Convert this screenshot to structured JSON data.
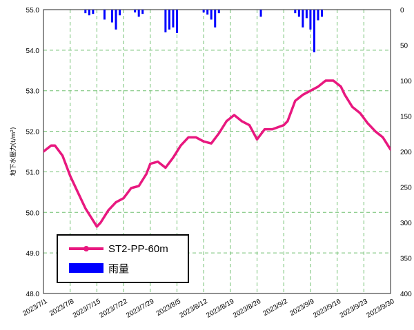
{
  "chart_data": {
    "type": "line",
    "ylabel_left": "地下水壓力(t/m²)",
    "x_ticks": [
      "2023/7/1",
      "2023/7/8",
      "2023/7/15",
      "2023/7/22",
      "2023/7/29",
      "2023/8/5",
      "2023/8/12",
      "2023/8/19",
      "2023/8/26",
      "2023/9/2",
      "2023/9/9",
      "2023/9/16",
      "2023/9/23",
      "2023/9/30"
    ],
    "xlim": [
      "2023/7/1",
      "2023/9/30"
    ],
    "y_left": {
      "ticks": [
        "55.0",
        "54.0",
        "53.0",
        "52.0",
        "51.0",
        "50.0",
        "49.0",
        "48.0"
      ],
      "ylim": [
        48,
        55
      ]
    },
    "y_right": {
      "ticks": [
        "0",
        "50",
        "100",
        "150",
        "200",
        "250",
        "300",
        "350",
        "400"
      ],
      "ylim": [
        0,
        400
      ],
      "inverted": true
    },
    "grid": true,
    "legend_position": "bottom-left",
    "series": [
      {
        "name": "ST2-PP-60m",
        "kind": "line",
        "axis": "left",
        "color": "#e8187f",
        "points": [
          [
            "2023/7/1",
            51.5
          ],
          [
            "2023/7/3",
            51.65
          ],
          [
            "2023/7/4",
            51.65
          ],
          [
            "2023/7/6",
            51.4
          ],
          [
            "2023/7/8",
            50.9
          ],
          [
            "2023/7/10",
            50.5
          ],
          [
            "2023/7/12",
            50.1
          ],
          [
            "2023/7/14",
            49.8
          ],
          [
            "2023/7/15",
            49.65
          ],
          [
            "2023/7/16",
            49.75
          ],
          [
            "2023/7/18",
            50.05
          ],
          [
            "2023/7/20",
            50.25
          ],
          [
            "2023/7/22",
            50.35
          ],
          [
            "2023/7/24",
            50.6
          ],
          [
            "2023/7/26",
            50.65
          ],
          [
            "2023/7/28",
            50.95
          ],
          [
            "2023/7/29",
            51.2
          ],
          [
            "2023/7/31",
            51.25
          ],
          [
            "2023/8/2",
            51.1
          ],
          [
            "2023/8/4",
            51.35
          ],
          [
            "2023/8/6",
            51.65
          ],
          [
            "2023/8/8",
            51.85
          ],
          [
            "2023/8/10",
            51.85
          ],
          [
            "2023/8/12",
            51.75
          ],
          [
            "2023/8/14",
            51.7
          ],
          [
            "2023/8/16",
            51.95
          ],
          [
            "2023/8/18",
            52.25
          ],
          [
            "2023/8/20",
            52.4
          ],
          [
            "2023/8/22",
            52.25
          ],
          [
            "2023/8/24",
            52.15
          ],
          [
            "2023/8/26",
            51.8
          ],
          [
            "2023/8/28",
            52.05
          ],
          [
            "2023/8/30",
            52.05
          ],
          [
            "2023/9/2",
            52.15
          ],
          [
            "2023/9/3",
            52.25
          ],
          [
            "2023/9/5",
            52.75
          ],
          [
            "2023/9/7",
            52.9
          ],
          [
            "2023/9/9",
            53.0
          ],
          [
            "2023/9/11",
            53.1
          ],
          [
            "2023/9/13",
            53.25
          ],
          [
            "2023/9/15",
            53.25
          ],
          [
            "2023/9/17",
            53.1
          ],
          [
            "2023/9/18",
            52.9
          ],
          [
            "2023/9/20",
            52.6
          ],
          [
            "2023/9/22",
            52.45
          ],
          [
            "2023/9/24",
            52.2
          ],
          [
            "2023/9/26",
            52.0
          ],
          [
            "2023/9/28",
            51.85
          ],
          [
            "2023/9/30",
            51.55
          ]
        ]
      },
      {
        "name": "雨量",
        "kind": "bar",
        "axis": "right",
        "color": "#0000ff",
        "points": [
          [
            "2023/7/12",
            5
          ],
          [
            "2023/7/13",
            8
          ],
          [
            "2023/7/14",
            6
          ],
          [
            "2023/7/17",
            14
          ],
          [
            "2023/7/19",
            18
          ],
          [
            "2023/7/20",
            28
          ],
          [
            "2023/7/21",
            8
          ],
          [
            "2023/7/25",
            4
          ],
          [
            "2023/7/26",
            10
          ],
          [
            "2023/7/27",
            6
          ],
          [
            "2023/8/2",
            32
          ],
          [
            "2023/8/3",
            28
          ],
          [
            "2023/8/4",
            25
          ],
          [
            "2023/8/5",
            33
          ],
          [
            "2023/8/12",
            4
          ],
          [
            "2023/8/13",
            7
          ],
          [
            "2023/8/14",
            14
          ],
          [
            "2023/8/15",
            25
          ],
          [
            "2023/8/16",
            5
          ],
          [
            "2023/8/27",
            10
          ],
          [
            "2023/9/5",
            5
          ],
          [
            "2023/9/6",
            10
          ],
          [
            "2023/9/7",
            25
          ],
          [
            "2023/9/8",
            12
          ],
          [
            "2023/9/9",
            28
          ],
          [
            "2023/9/10",
            60
          ],
          [
            "2023/9/11",
            15
          ],
          [
            "2023/9/12",
            10
          ]
        ]
      }
    ]
  }
}
